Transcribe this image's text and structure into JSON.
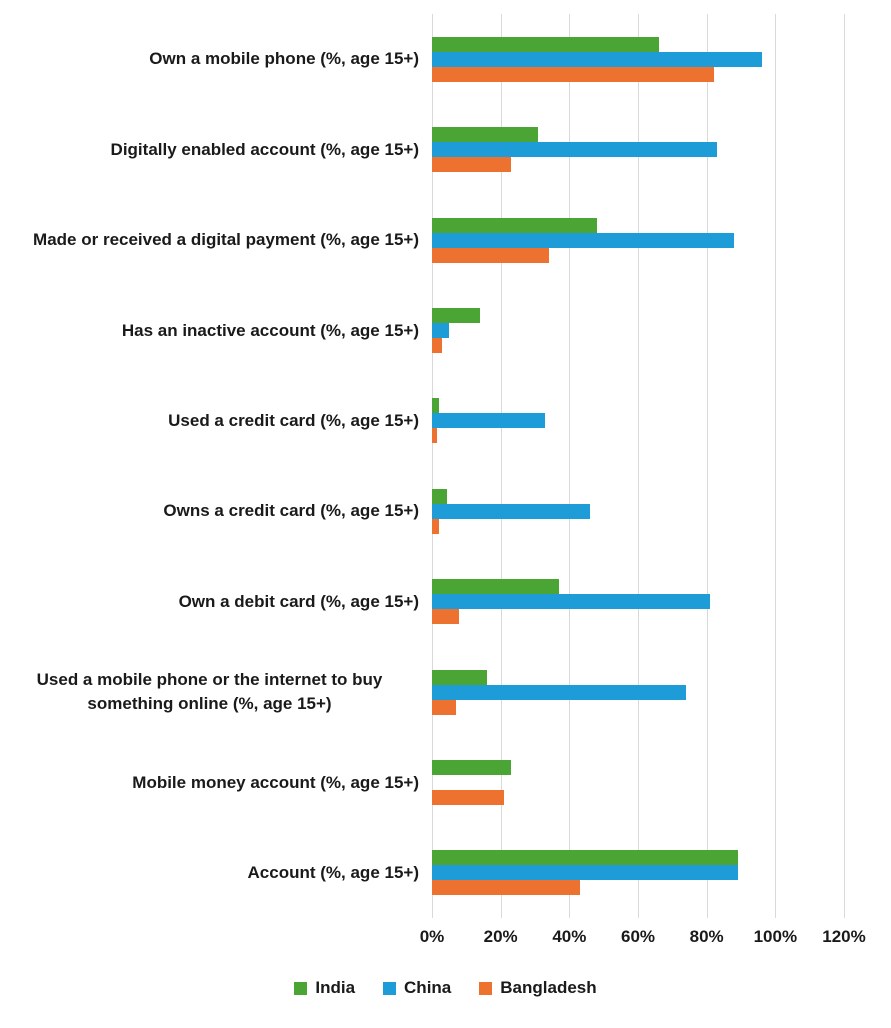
{
  "chart_data": {
    "type": "bar",
    "orientation": "horizontal",
    "title": "",
    "xlabel": "",
    "ylabel": "",
    "xlim": [
      0,
      120
    ],
    "x_ticks": [
      "0%",
      "20%",
      "40%",
      "60%",
      "80%",
      "100%",
      "120%"
    ],
    "grid": true,
    "legend_position": "bottom",
    "gridline_color": "#d9d9d9",
    "categories": [
      "Own a mobile phone (%, age 15+)",
      "Digitally enabled account (%, age 15+)",
      "Made or received a digital payment (%, age 15+)",
      "Has an inactive account (%, age 15+)",
      "Used a credit card (%, age 15+)",
      "Owns a credit card (%, age 15+)",
      "Own a debit card (%, age 15+)",
      "Used a mobile phone or the internet to buy something online (%, age 15+)",
      "Mobile money account (%, age 15+)",
      "Account (%, age 15+)"
    ],
    "series": [
      {
        "name": "India",
        "color": "#4AA535",
        "values": [
          66,
          31,
          48,
          14,
          2,
          4.5,
          37,
          16,
          23,
          89
        ]
      },
      {
        "name": "China",
        "color": "#1E9CD7",
        "values": [
          96,
          83,
          88,
          5,
          33,
          46,
          81,
          74,
          0,
          89
        ]
      },
      {
        "name": "Bangladesh",
        "color": "#ED712F",
        "values": [
          82,
          23,
          34,
          3,
          1.5,
          2,
          8,
          7,
          21,
          43
        ]
      }
    ]
  }
}
